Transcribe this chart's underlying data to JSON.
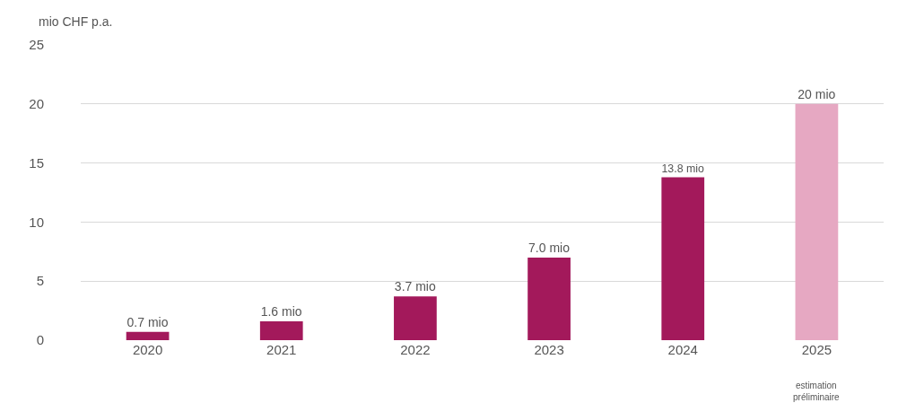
{
  "chart_data": {
    "type": "bar",
    "ylabel": "mio CHF p.a.",
    "categories": [
      "2020",
      "2021",
      "2022",
      "2023",
      "2024",
      "2025"
    ],
    "values": [
      0.7,
      1.6,
      3.7,
      7.0,
      13.8,
      20
    ],
    "colors": [
      "#a3195b",
      "#a3195b",
      "#a3195b",
      "#a3195b",
      "#a3195b",
      "#e6a8c2"
    ],
    "value_labels": [
      "0.7 mio",
      "1.6 mio",
      "3.7 mio",
      "7.0 mio",
      "13.8 mio",
      "20 mio"
    ],
    "annotations": [
      "estimation préliminaire"
    ],
    "ylim": [
      0,
      25
    ],
    "yticks": [
      0,
      5,
      10,
      15,
      20,
      25
    ],
    "grid": "y"
  }
}
